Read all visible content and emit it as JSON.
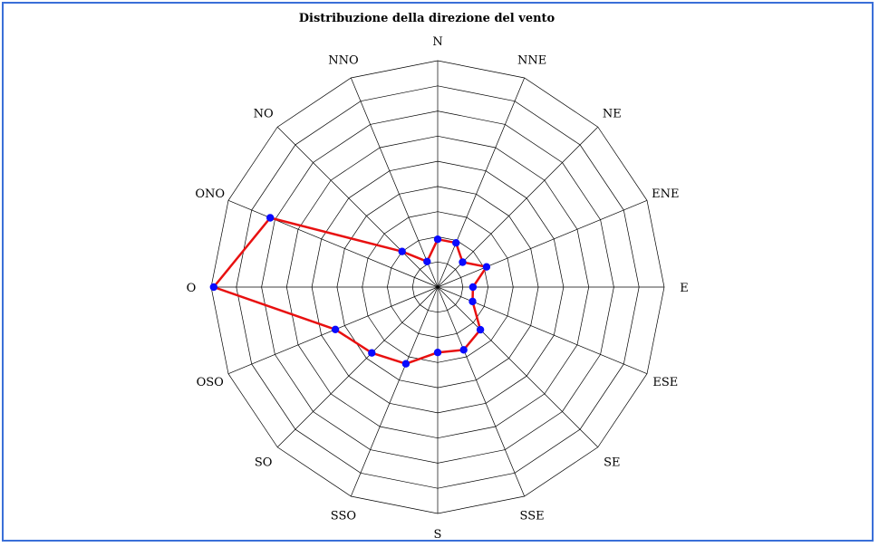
{
  "chart_data": {
    "type": "radar",
    "title": "Distribuzione della direzione del vento",
    "categories": [
      "N",
      "NNE",
      "NE",
      "ENE",
      "E",
      "ESE",
      "SE",
      "SSE",
      "S",
      "SSO",
      "SO",
      "OSO",
      "O",
      "ONO",
      "NNO",
      "NO"
    ],
    "category_order_clockwise": [
      "N",
      "NNE",
      "NE",
      "ENE",
      "E",
      "ESE",
      "SE",
      "SSE",
      "S",
      "SSO",
      "SO",
      "OSO",
      "O",
      "ONO",
      "NO",
      "NNO"
    ],
    "rings": 9,
    "rmax": 9,
    "grid": true,
    "series": [
      {
        "values_clockwise": [
          1.9,
          1.9,
          1.4,
          2.1,
          1.4,
          1.5,
          2.4,
          2.7,
          2.6,
          3.3,
          3.7,
          4.4,
          8.9,
          7.2,
          2.0,
          1.1
        ],
        "color": "#e81010",
        "marker_color": "#0a0aff"
      }
    ]
  }
}
